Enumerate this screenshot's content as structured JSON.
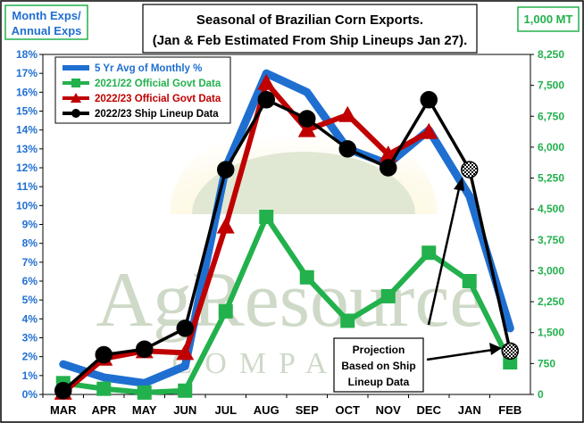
{
  "chart_data": {
    "type": "line",
    "title_line1": "Seasonal of Brazilian Corn Exports.",
    "title_line2": "(Jan & Feb Estimated From Ship Lineups Jan 27).",
    "y_left_label_line1": "Month Exps/",
    "y_left_label_line2": "Annual Exps",
    "y_right_label": "1,000 MT",
    "categories": [
      "MAR",
      "APR",
      "MAY",
      "JUN",
      "JUL",
      "AUG",
      "SEP",
      "OCT",
      "NOV",
      "DEC",
      "JAN",
      "FEB"
    ],
    "y_left": {
      "min": 0,
      "max": 18,
      "step": 1,
      "unit": "%"
    },
    "y_right": {
      "min": 0,
      "max": 8250,
      "step": 750
    },
    "y_left_ticks": [
      "0%",
      "1%",
      "2%",
      "3%",
      "4%",
      "5%",
      "6%",
      "7%",
      "8%",
      "9%",
      "10%",
      "11%",
      "12%",
      "13%",
      "14%",
      "15%",
      "16%",
      "17%",
      "18%"
    ],
    "y_right_ticks": [
      "0",
      "750",
      "1,500",
      "2,250",
      "3,000",
      "3,750",
      "4,500",
      "5,250",
      "6,000",
      "6,750",
      "7,500",
      "8,250"
    ],
    "legend_position": "top-left",
    "series": [
      {
        "name": "5 Yr Avg of Monthly %",
        "color": "#1f6fd1",
        "marker": "none",
        "axis": "left",
        "values": [
          1.6,
          0.9,
          0.6,
          1.5,
          12.0,
          17.0,
          16.0,
          13.0,
          12.2,
          14.0,
          10.5,
          3.5
        ]
      },
      {
        "name": "2021/22 Official Govt Data",
        "color": "#22b14c",
        "marker": "square",
        "axis": "left",
        "values": [
          0.6,
          0.3,
          0.1,
          0.2,
          4.4,
          9.4,
          6.2,
          3.9,
          5.2,
          7.5,
          6.0,
          1.7
        ]
      },
      {
        "name": "2022/23 Official Govt Data",
        "color": "#c00000",
        "marker": "triangle",
        "axis": "left",
        "values": [
          0.1,
          1.9,
          2.3,
          2.2,
          8.9,
          16.5,
          14.0,
          14.8,
          12.7,
          13.9,
          null,
          null
        ]
      },
      {
        "name": "2022/23 Ship Lineup Data",
        "color": "#000000",
        "marker": "circle",
        "axis": "left",
        "values": [
          0.2,
          2.1,
          2.4,
          3.5,
          11.9,
          15.6,
          14.6,
          13.0,
          12.0,
          15.6,
          11.9,
          2.3
        ],
        "projected_from_index": 10
      }
    ],
    "annotation": {
      "line1": "Projection",
      "line2": "Based on Ship",
      "line3": "Lineup Data"
    },
    "watermark": {
      "line1": "AgResource",
      "line2": "COMPANY"
    },
    "grid": false
  }
}
